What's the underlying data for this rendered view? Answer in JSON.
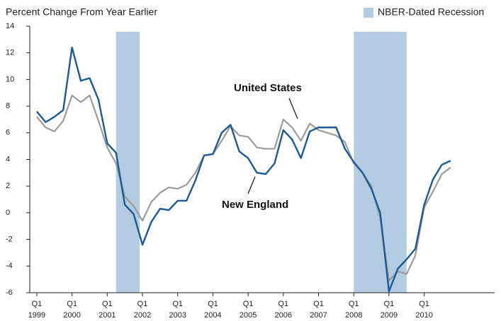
{
  "chart_data": {
    "type": "line",
    "y_axis_label": "Percent Change From Year Earlier",
    "recession_label": "NBER-Dated Recession",
    "recession_color": "#b4cce2",
    "recessions": [
      [
        2001.25,
        2001.92
      ],
      [
        2008.0,
        2009.5
      ]
    ],
    "x": [
      1999,
      1999.25,
      1999.5,
      1999.75,
      2000,
      2000.25,
      2000.5,
      2000.75,
      2001,
      2001.25,
      2001.5,
      2001.75,
      2002,
      2002.25,
      2002.5,
      2002.75,
      2003,
      2003.25,
      2003.5,
      2003.75,
      2004,
      2004.25,
      2004.5,
      2004.75,
      2005,
      2005.25,
      2005.5,
      2005.75,
      2006,
      2006.25,
      2006.5,
      2006.75,
      2007,
      2007.25,
      2007.5,
      2007.75,
      2008,
      2008.25,
      2008.5,
      2008.75,
      2009,
      2009.25,
      2009.5,
      2009.75,
      2010,
      2010.25,
      2010.5,
      2010.75
    ],
    "series": [
      {
        "name": "United States",
        "color": "#9b9b9b",
        "values": [
          7.2,
          6.4,
          6.1,
          6.9,
          8.8,
          8.3,
          8.8,
          6.9,
          4.9,
          3.7,
          1.2,
          0.5,
          -0.6,
          0.8,
          1.5,
          1.9,
          1.8,
          2.1,
          3.0,
          4.3,
          4.4,
          5.4,
          6.5,
          5.8,
          5.7,
          4.9,
          4.8,
          4.8,
          7.0,
          6.4,
          5.4,
          6.7,
          6.2,
          6.0,
          5.8,
          5.3,
          3.7,
          3.0,
          2.0,
          -0.4,
          -5.1,
          -4.4,
          -4.6,
          -3.2,
          0.4,
          1.6,
          2.9,
          3.4
        ]
      },
      {
        "name": "New England",
        "color": "#1a5a96",
        "values": [
          7.6,
          6.8,
          7.2,
          7.7,
          12.4,
          9.9,
          10.1,
          8.5,
          5.2,
          4.5,
          0.6,
          -0.1,
          -2.4,
          -0.7,
          0.3,
          0.2,
          0.9,
          0.9,
          2.4,
          4.3,
          4.4,
          6.0,
          6.6,
          4.6,
          4.1,
          3.0,
          2.9,
          3.7,
          6.2,
          5.5,
          4.1,
          6.1,
          6.4,
          6.4,
          6.4,
          4.8,
          3.8,
          3.0,
          1.8,
          0.0,
          -5.9,
          -4.2,
          -3.5,
          -2.7,
          0.6,
          2.5,
          3.6,
          3.9
        ]
      }
    ],
    "xlim": [
      1998.8,
      2012.0
    ],
    "xticks": [
      {
        "value": 1999,
        "label": "Q1\n1999"
      },
      {
        "value": 2000,
        "label": "Q1\n2000"
      },
      {
        "value": 2001,
        "label": "Q1\n2001"
      },
      {
        "value": 2002,
        "label": "Q1\n2002"
      },
      {
        "value": 2003,
        "label": "Q1\n2003"
      },
      {
        "value": 2004,
        "label": "Q1\n2004"
      },
      {
        "value": 2005,
        "label": "Q1\n2005"
      },
      {
        "value": 2006,
        "label": "Q1\n2006"
      },
      {
        "value": 2007,
        "label": "Q1\n2007"
      },
      {
        "value": 2008,
        "label": "Q1\n2008"
      },
      {
        "value": 2009,
        "label": "Q1\n2009"
      },
      {
        "value": 2010,
        "label": "Q1\n2010"
      }
    ],
    "ylim": [
      -6,
      14
    ],
    "yticks": [
      -6,
      -4,
      -2,
      0,
      2,
      4,
      6,
      8,
      10,
      12,
      14
    ],
    "grid": false
  }
}
